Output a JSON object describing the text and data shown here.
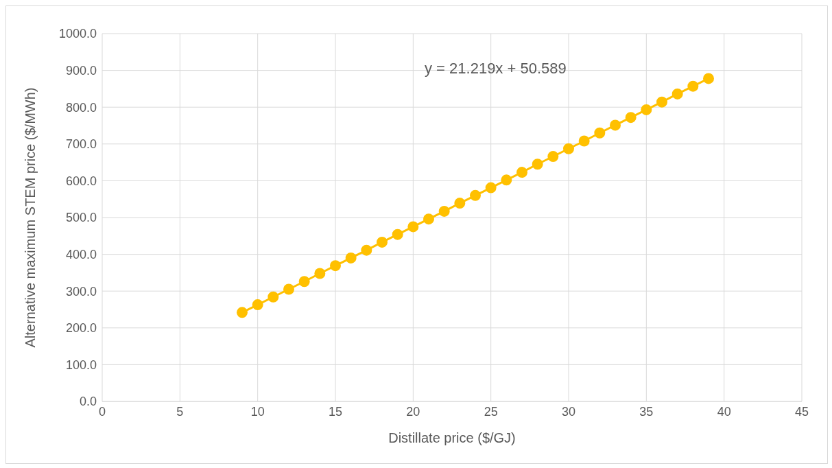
{
  "chart_data": {
    "type": "line",
    "xlabel": "Distillate price ($/GJ)",
    "ylabel": "Alternative maximum  STEM price ($/MWh)",
    "x": [
      9,
      10,
      11,
      12,
      13,
      14,
      15,
      16,
      17,
      18,
      19,
      20,
      21,
      22,
      23,
      24,
      25,
      26,
      27,
      28,
      29,
      30,
      31,
      32,
      33,
      34,
      35,
      36,
      37,
      38,
      39
    ],
    "series": [
      {
        "color": "#ffc000",
        "values": [
          242,
          263,
          284,
          305,
          326,
          348,
          369,
          390,
          411,
          433,
          454,
          475,
          496,
          517,
          539,
          560,
          581,
          602,
          623,
          645,
          666,
          687,
          708,
          730,
          751,
          772,
          793,
          814,
          836,
          857,
          878
        ]
      }
    ],
    "xlim": [
      0,
      45
    ],
    "xticks": [
      0,
      5,
      10,
      15,
      20,
      25,
      30,
      35,
      40,
      45
    ],
    "ylim": [
      0,
      1000
    ],
    "yticks": [
      {
        "value": 0,
        "label": "0.0"
      },
      {
        "value": 100,
        "label": "100.0"
      },
      {
        "value": 200,
        "label": "200.0"
      },
      {
        "value": 300,
        "label": "300.0"
      },
      {
        "value": 400,
        "label": "400.0"
      },
      {
        "value": 500,
        "label": "500.0"
      },
      {
        "value": 600,
        "label": "600.0"
      },
      {
        "value": 700,
        "label": "700.0"
      },
      {
        "value": 800,
        "label": "800.0"
      },
      {
        "value": 900,
        "label": "900.0"
      },
      {
        "value": 1000,
        "label": "1000.0"
      }
    ],
    "grid": true,
    "marker": "circle",
    "line_style": "solid",
    "legend": false,
    "annotations": [
      "y = 21.219x + 50.589"
    ]
  }
}
